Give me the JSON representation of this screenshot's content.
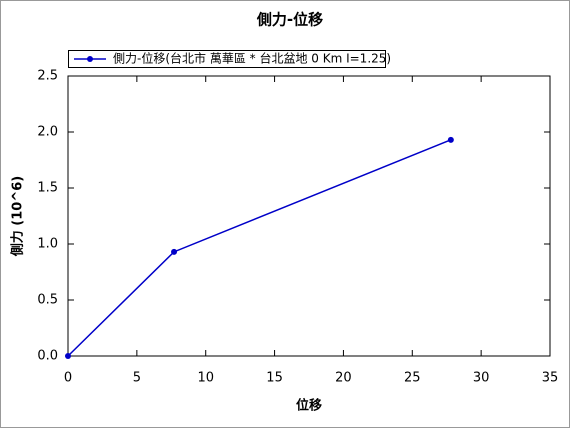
{
  "chart_data": {
    "type": "line",
    "title": "側力-位移",
    "x_label": "位移",
    "y_label": "側力 (10^6)",
    "x": [
      0,
      7.7,
      27.8
    ],
    "series": [
      {
        "name": "側力-位移(台北市 萬華區 * 台北盆地 0 Km I=1.25)",
        "color": "#0000c8",
        "values": [
          0,
          0.93,
          1.93
        ]
      }
    ],
    "xlim": [
      0,
      35
    ],
    "xticks": [
      0,
      5,
      10,
      15,
      20,
      25,
      30,
      35
    ],
    "ylim": [
      0,
      2.5
    ],
    "yticks": [
      {
        "value": 0,
        "label": "0.0"
      },
      {
        "value": 0.5,
        "label": "0.5"
      },
      {
        "value": 1,
        "label": "1.0"
      },
      {
        "value": 1.5,
        "label": "1.5"
      },
      {
        "value": 2,
        "label": "2.0"
      },
      {
        "value": 2.5,
        "label": "2.5"
      }
    ],
    "grid": false,
    "legend": "top-left"
  }
}
